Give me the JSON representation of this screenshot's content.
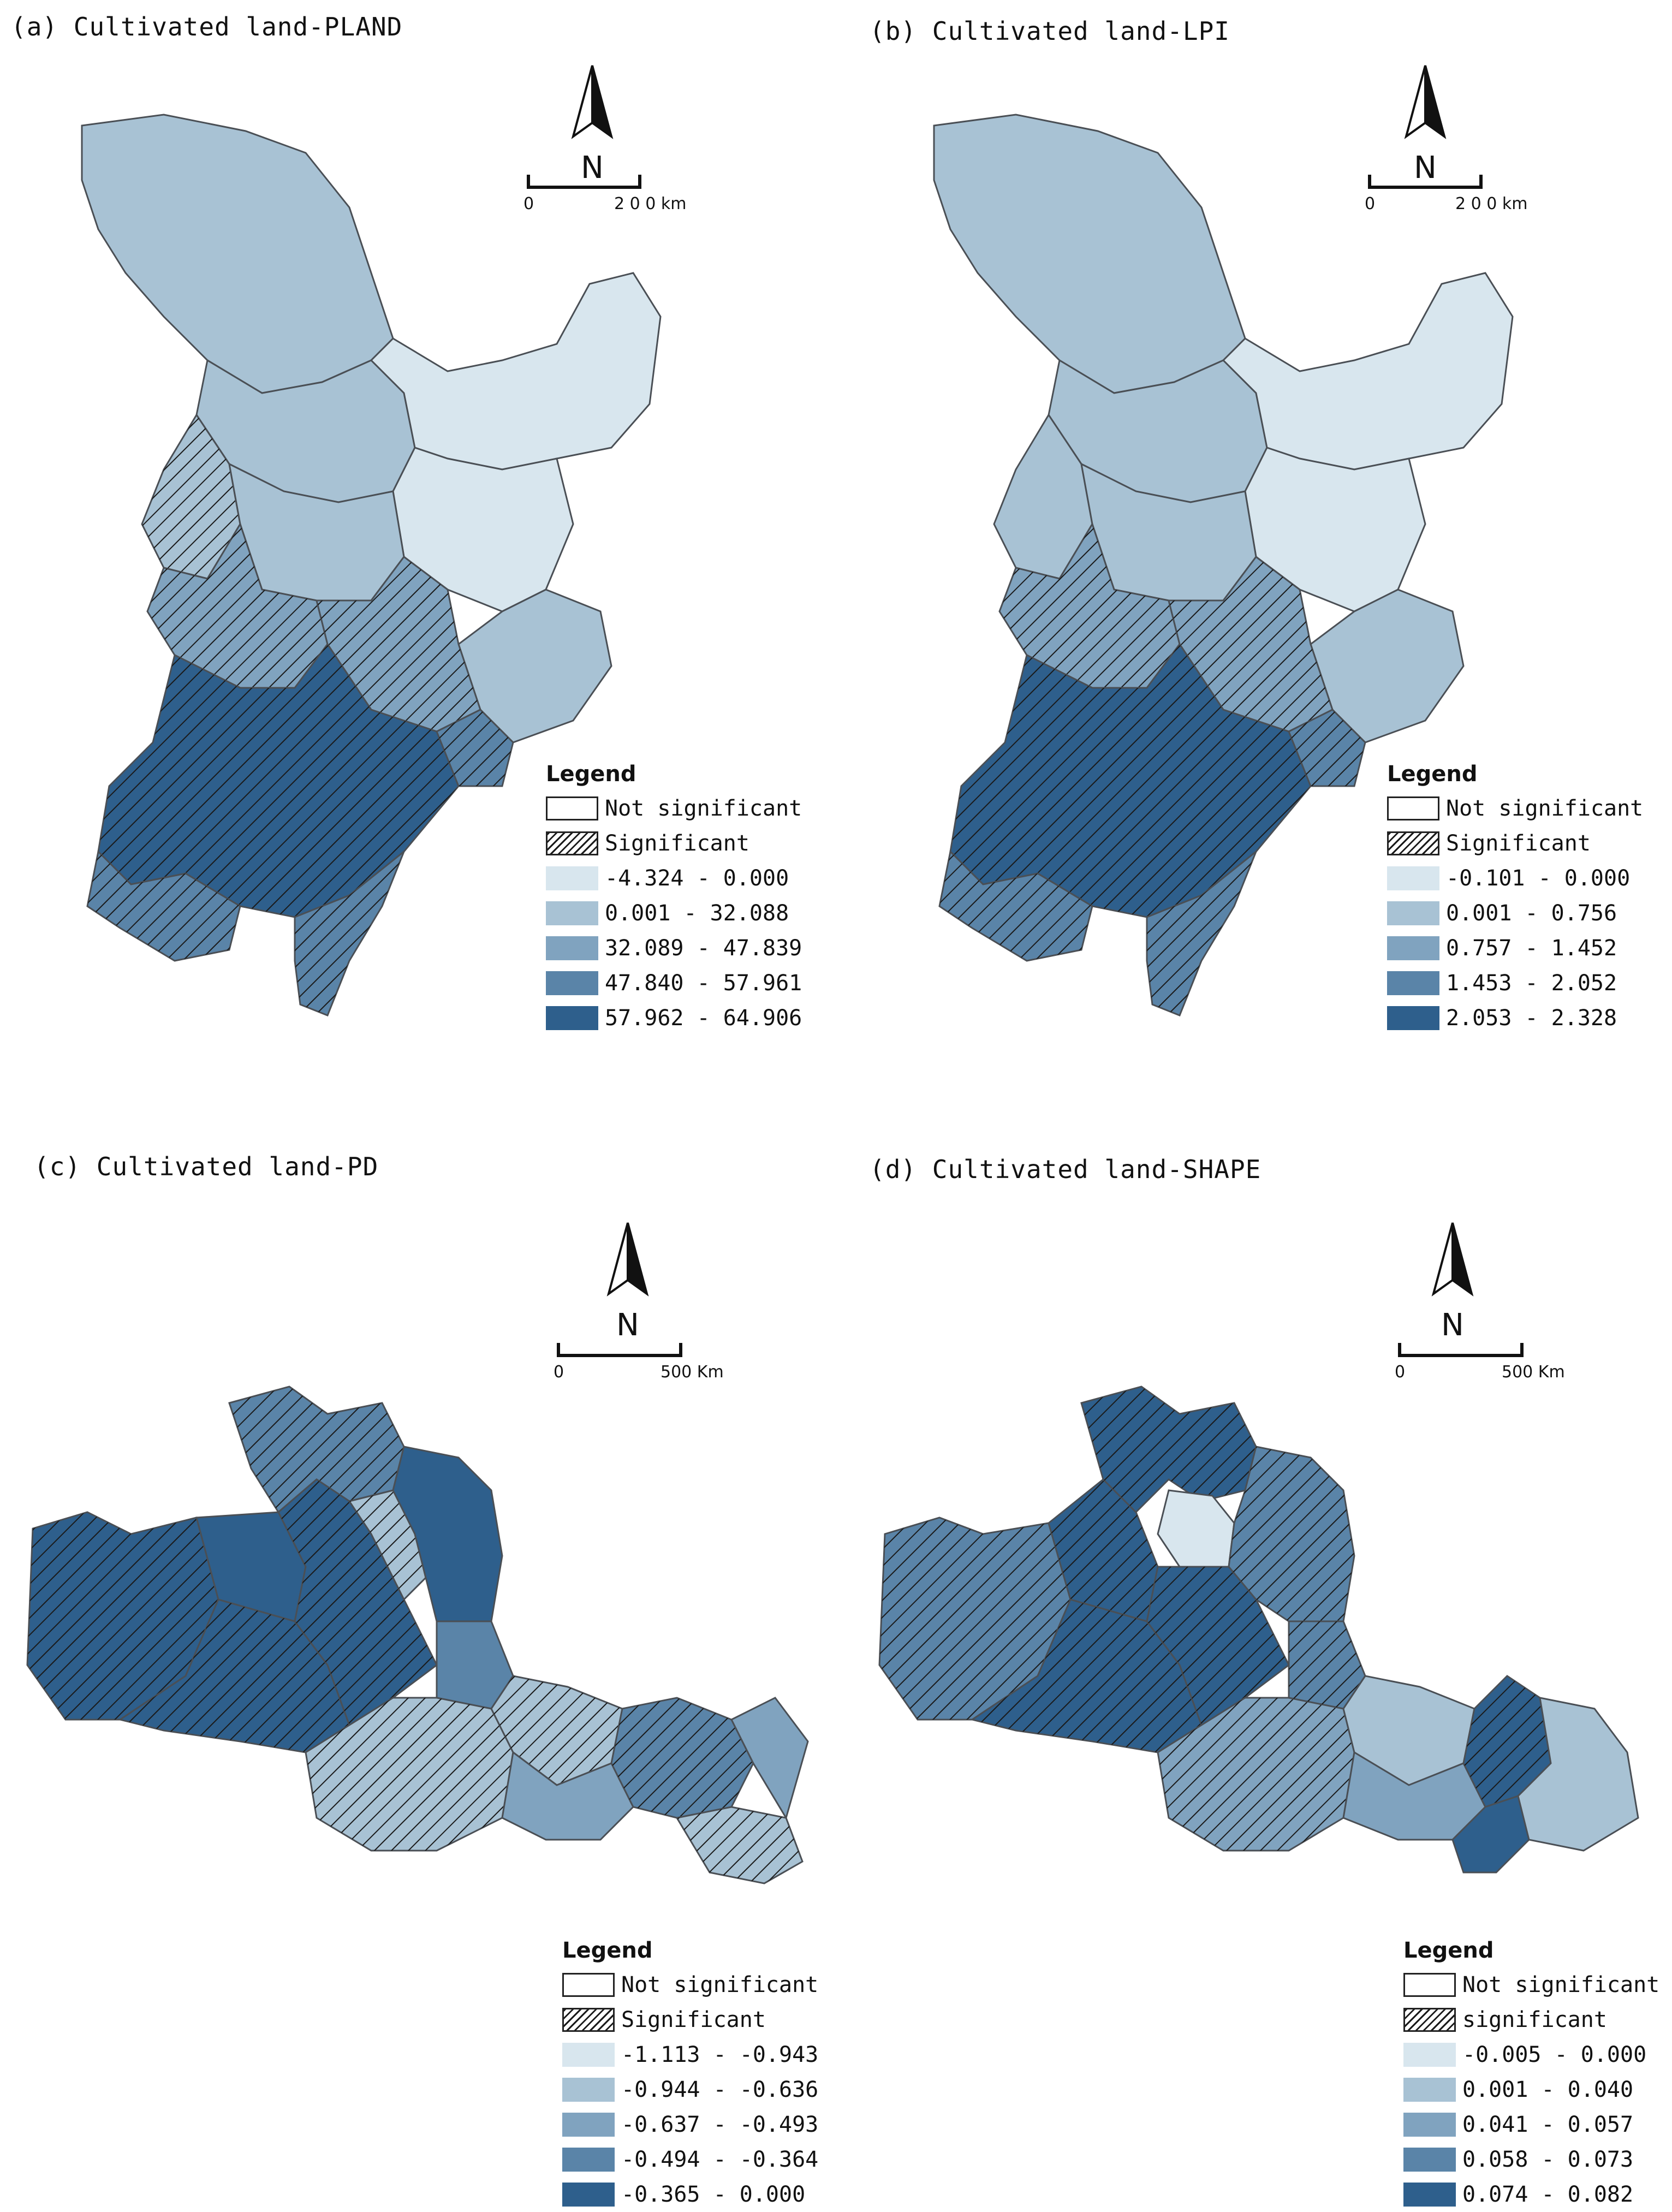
{
  "colors": {
    "class1": "#d8e6ee",
    "class2": "#a8c2d4",
    "class3": "#80a3bf",
    "class4": "#5a84a8",
    "class5": "#2e5f8c",
    "border": "#4a4f55",
    "hatch": "#1a1a1a"
  },
  "panels": [
    {
      "id": "a",
      "title": "(a) Cultivated land-PLAND",
      "scale": {
        "start": "0",
        "end": "2 0 0 km"
      },
      "north": "N",
      "legend": {
        "title": "Legend",
        "items": [
          {
            "label": "Not significant",
            "kind": "open"
          },
          {
            "label": "Significant",
            "kind": "hatch"
          },
          {
            "label": "-4.324 - 0.000",
            "kind": "class1"
          },
          {
            "label": "0.001 - 32.088",
            "kind": "class2"
          },
          {
            "label": "32.089 - 47.839",
            "kind": "class3"
          },
          {
            "label": "47.840 - 57.961",
            "kind": "class4"
          },
          {
            "label": "57.962 - 64.906",
            "kind": "class5"
          }
        ]
      }
    },
    {
      "id": "b",
      "title": "(b) Cultivated land-LPI",
      "scale": {
        "start": "0",
        "end": "2 0 0 km"
      },
      "north": "N",
      "legend": {
        "title": "Legend",
        "items": [
          {
            "label": "Not significant",
            "kind": "open"
          },
          {
            "label": "Significant",
            "kind": "hatch"
          },
          {
            "label": "-0.101 - 0.000",
            "kind": "class1"
          },
          {
            "label": "0.001 - 0.756",
            "kind": "class2"
          },
          {
            "label": "0.757 - 1.452",
            "kind": "class3"
          },
          {
            "label": "1.453 - 2.052",
            "kind": "class4"
          },
          {
            "label": "2.053 - 2.328",
            "kind": "class5"
          }
        ]
      }
    },
    {
      "id": "c",
      "title": "(c) Cultivated land-PD",
      "scale": {
        "start": "0",
        "end": "500 Km"
      },
      "north": "N",
      "legend": {
        "title": "Legend",
        "items": [
          {
            "label": "Not significant",
            "kind": "open"
          },
          {
            "label": "Significant",
            "kind": "hatch"
          },
          {
            "label": "-1.113 - -0.943",
            "kind": "class1"
          },
          {
            "label": "-0.944 - -0.636",
            "kind": "class2"
          },
          {
            "label": "-0.637 - -0.493",
            "kind": "class3"
          },
          {
            "label": "-0.494 - -0.364",
            "kind": "class4"
          },
          {
            "label": "-0.365 - 0.000",
            "kind": "class5"
          }
        ]
      }
    },
    {
      "id": "d",
      "title": "(d) Cultivated land-SHAPE",
      "scale": {
        "start": "0",
        "end": "500 Km"
      },
      "north": "N",
      "legend": {
        "title": "Legend",
        "items": [
          {
            "label": "Not significant",
            "kind": "open"
          },
          {
            "label": "significant",
            "kind": "hatch"
          },
          {
            "label": "-0.005 - 0.000",
            "kind": "class1"
          },
          {
            "label": "0.001 - 0.040",
            "kind": "class2"
          },
          {
            "label": "0.041 - 0.057",
            "kind": "class3"
          },
          {
            "label": "0.058 - 0.073",
            "kind": "class4"
          },
          {
            "label": "0.074 - 0.082",
            "kind": "class5"
          }
        ]
      }
    }
  ]
}
